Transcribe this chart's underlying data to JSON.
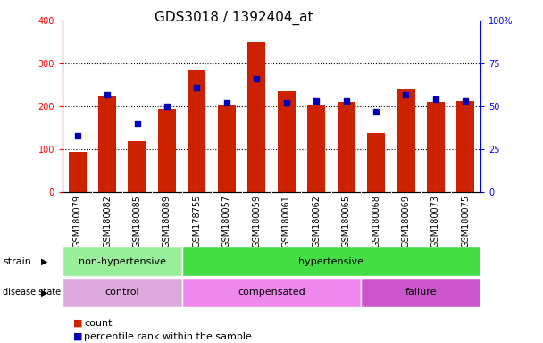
{
  "title": "GDS3018 / 1392404_at",
  "samples": [
    "GSM180079",
    "GSM180082",
    "GSM180085",
    "GSM180089",
    "GSM178755",
    "GSM180057",
    "GSM180059",
    "GSM180061",
    "GSM180062",
    "GSM180065",
    "GSM180068",
    "GSM180069",
    "GSM180073",
    "GSM180075"
  ],
  "counts": [
    93,
    225,
    118,
    193,
    285,
    205,
    350,
    235,
    205,
    210,
    138,
    240,
    210,
    212
  ],
  "percentile_ranks": [
    33,
    57,
    40,
    50,
    61,
    52,
    66,
    52,
    53,
    53,
    47,
    57,
    54,
    53
  ],
  "strain_groups": [
    {
      "label": "non-hypertensive",
      "start": 0,
      "end": 4,
      "color": "#99EE99"
    },
    {
      "label": "hypertensive",
      "start": 4,
      "end": 14,
      "color": "#44DD44"
    }
  ],
  "disease_groups": [
    {
      "label": "control",
      "start": 0,
      "end": 4,
      "color": "#DDAADD"
    },
    {
      "label": "compensated",
      "start": 4,
      "end": 10,
      "color": "#EE88EE"
    },
    {
      "label": "failure",
      "start": 10,
      "end": 14,
      "color": "#CC55CC"
    }
  ],
  "bar_color": "#CC2200",
  "dot_color": "#0000BB",
  "left_ylim": [
    0,
    400
  ],
  "right_ylim": [
    0,
    100
  ],
  "left_yticks": [
    0,
    100,
    200,
    300,
    400
  ],
  "right_yticks": [
    0,
    25,
    50,
    75,
    100
  ],
  "right_yticklabels": [
    "0",
    "25",
    "50",
    "75",
    "100%"
  ],
  "grid_yticks": [
    100,
    200,
    300
  ],
  "title_fontsize": 11,
  "tick_fontsize": 7,
  "label_fontsize": 8,
  "background_color": "#FFFFFF",
  "plot_bg": "#FFFFFF",
  "xtick_bg": "#DDDDDD"
}
